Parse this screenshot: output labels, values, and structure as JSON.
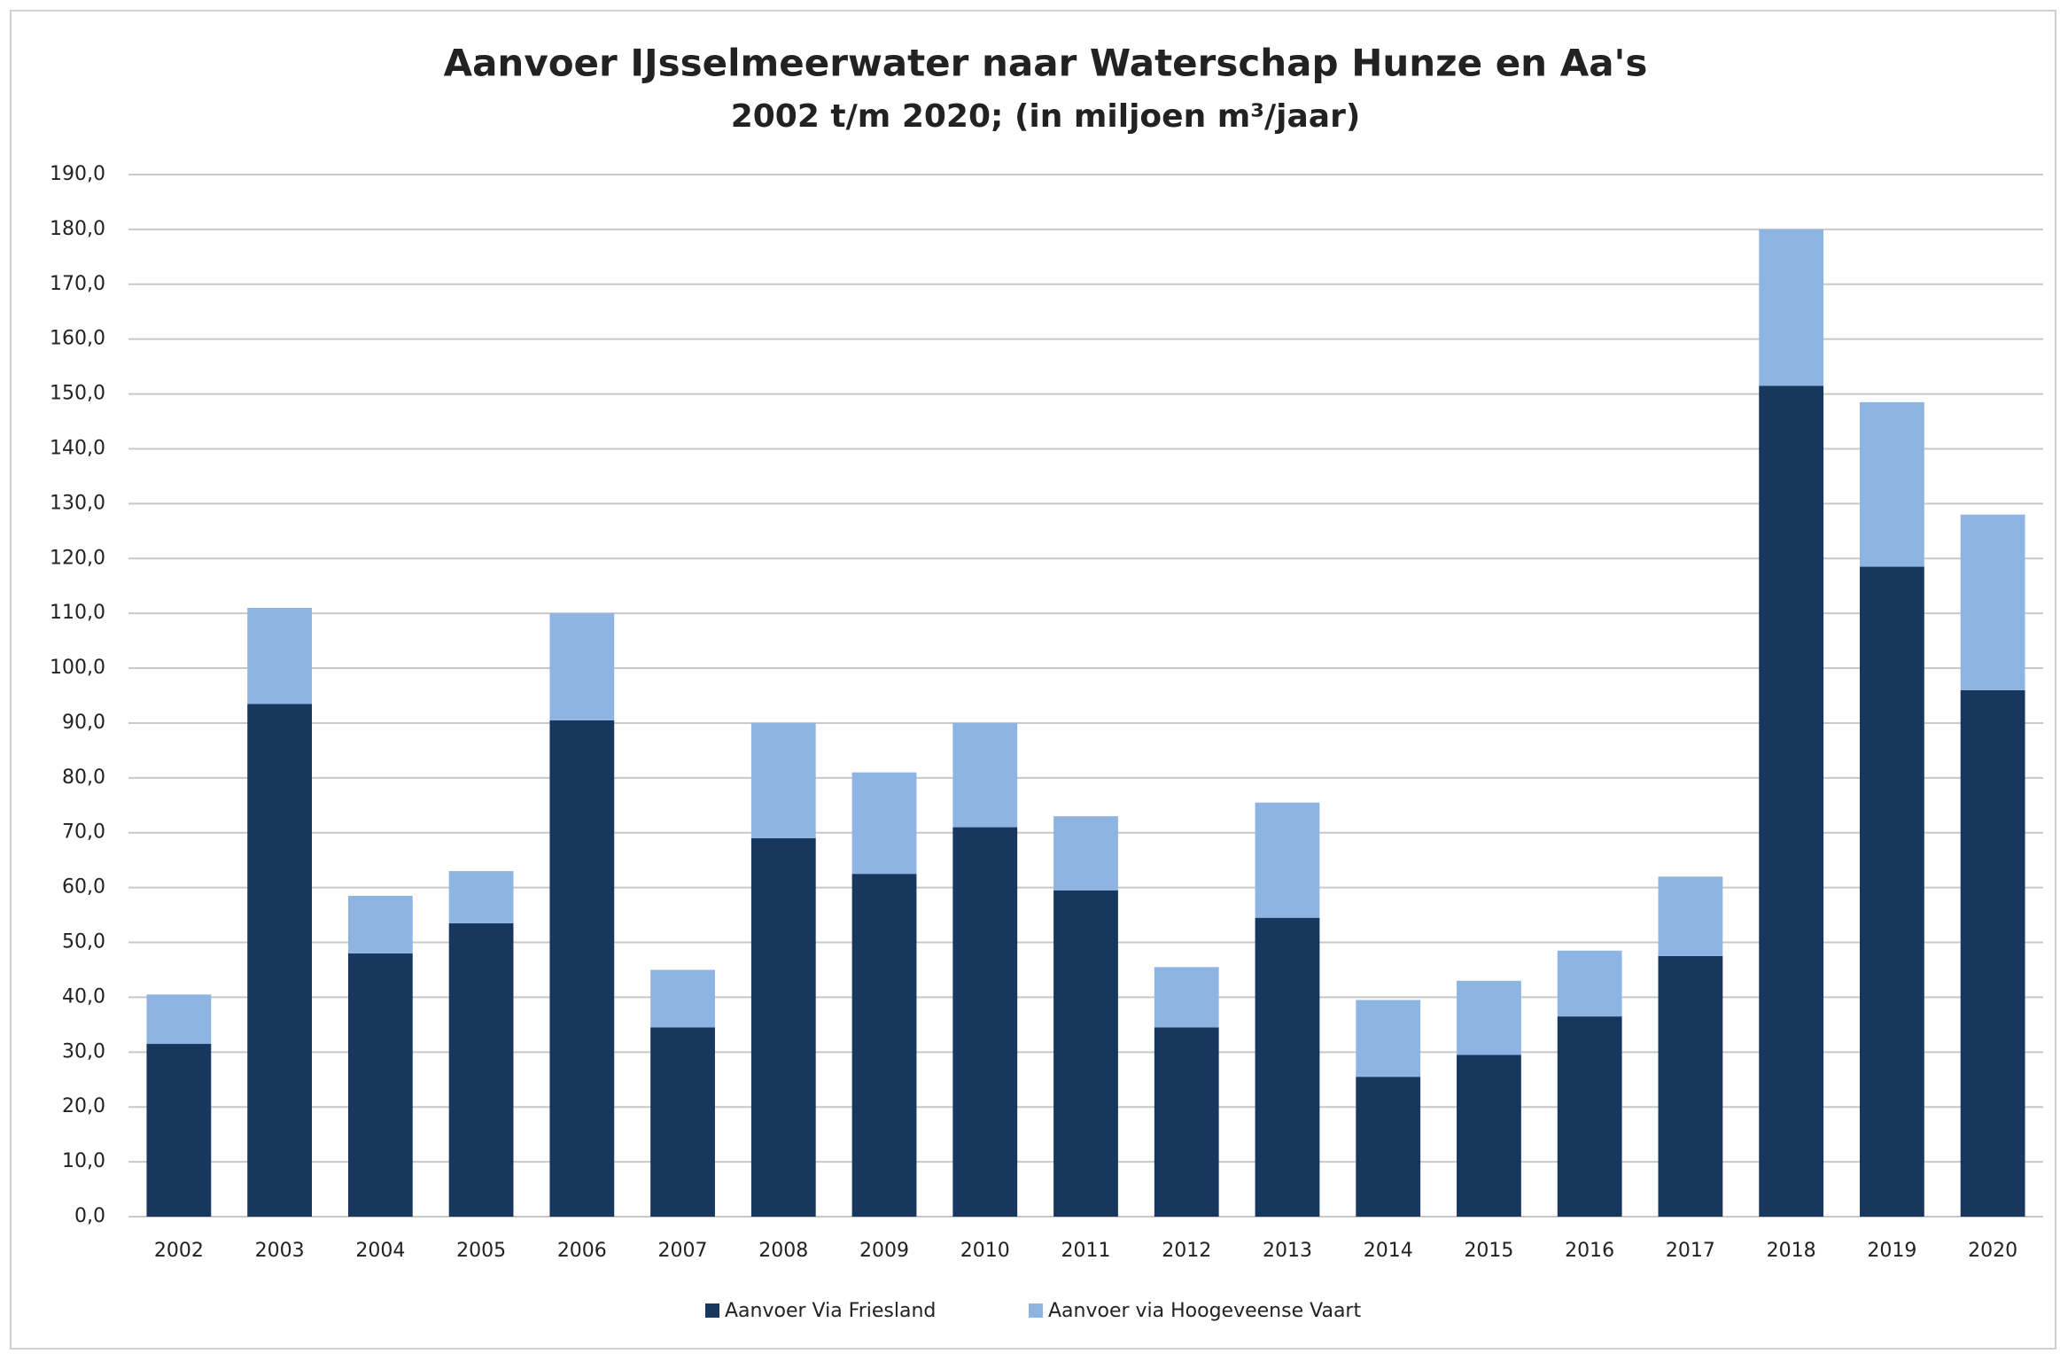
{
  "chart_data": {
    "type": "bar",
    "stacked": true,
    "title": "Aanvoer IJsselmeerwater naar Waterschap Hunze en Aa's",
    "subtitle": "2002 t/m 2020; (in miljoen m³/jaar)",
    "categories": [
      "2002",
      "2003",
      "2004",
      "2005",
      "2006",
      "2007",
      "2008",
      "2009",
      "2010",
      "2011",
      "2012",
      "2013",
      "2014",
      "2015",
      "2016",
      "2017",
      "2018",
      "2019",
      "2020"
    ],
    "series": [
      {
        "name": "Aanvoer Via Friesland",
        "color": "#17375e",
        "values": [
          31.5,
          93.5,
          48,
          53.5,
          90.5,
          34.5,
          69,
          62.5,
          71,
          59.5,
          34.5,
          54.5,
          25.5,
          29.5,
          36.5,
          47.5,
          151.5,
          118.5,
          96
        ]
      },
      {
        "name": "Aanvoer via Hoogeveense Vaart",
        "color": "#8eb4e3",
        "values": [
          9,
          17.5,
          10.5,
          9.5,
          19.5,
          10.5,
          21,
          18.5,
          19,
          13.5,
          11,
          21,
          14,
          13.5,
          12,
          14.5,
          28.5,
          30,
          32
        ]
      }
    ],
    "ylim": [
      0,
      190
    ],
    "yticks": [
      {
        "value": 0,
        "label": "0,0"
      },
      {
        "value": 10,
        "label": "10,0"
      },
      {
        "value": 20,
        "label": "20,0"
      },
      {
        "value": 30,
        "label": "30,0"
      },
      {
        "value": 40,
        "label": "40,0"
      },
      {
        "value": 50,
        "label": "50,0"
      },
      {
        "value": 60,
        "label": "60,0"
      },
      {
        "value": 70,
        "label": "70,0"
      },
      {
        "value": 80,
        "label": "80,0"
      },
      {
        "value": 90,
        "label": "90,0"
      },
      {
        "value": 100,
        "label": "100,0"
      },
      {
        "value": 110,
        "label": "110,0"
      },
      {
        "value": 120,
        "label": "120,0"
      },
      {
        "value": 130,
        "label": "130,0"
      },
      {
        "value": 140,
        "label": "140,0"
      },
      {
        "value": 150,
        "label": "150,0"
      },
      {
        "value": 160,
        "label": "160,0"
      },
      {
        "value": 170,
        "label": "170,0"
      },
      {
        "value": 180,
        "label": "180,0"
      },
      {
        "value": 190,
        "label": "190,0"
      }
    ],
    "grid": true,
    "legend": "bottom"
  }
}
